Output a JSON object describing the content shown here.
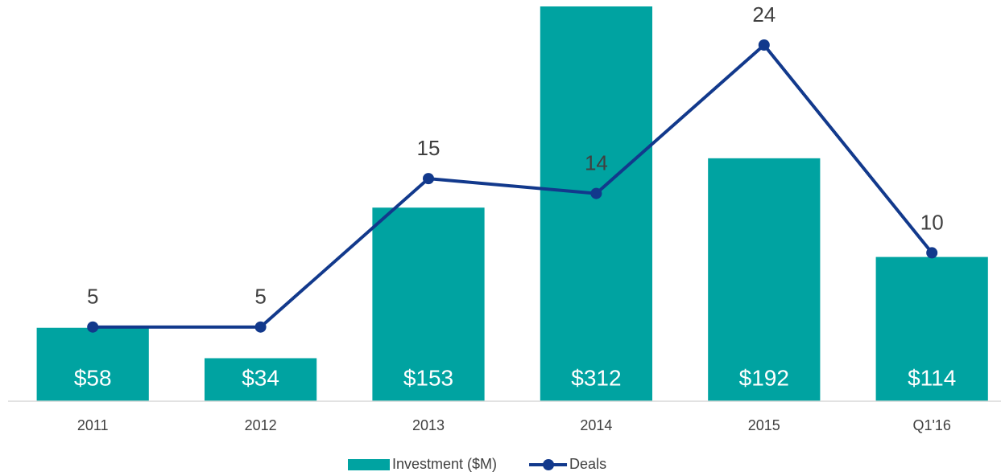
{
  "chart_data": {
    "type": "combo",
    "categories": [
      "2011",
      "2012",
      "2013",
      "2014",
      "2015",
      "Q1'16"
    ],
    "series": [
      {
        "name": "Investment ($M)",
        "type": "bar",
        "color": "#00a3a1",
        "values": [
          58,
          34,
          153,
          312,
          192,
          114
        ],
        "value_labels": [
          "$58",
          "$34",
          "$153",
          "$312",
          "$192",
          "$114"
        ]
      },
      {
        "name": "Deals",
        "type": "line",
        "color": "#12398c",
        "axis": "y2",
        "values": [
          5,
          5,
          15,
          14,
          24,
          10
        ]
      }
    ],
    "ylim": [
      0,
      312
    ],
    "y2lim": [
      0,
      26.6
    ],
    "grid": false,
    "legend": "bottom"
  }
}
